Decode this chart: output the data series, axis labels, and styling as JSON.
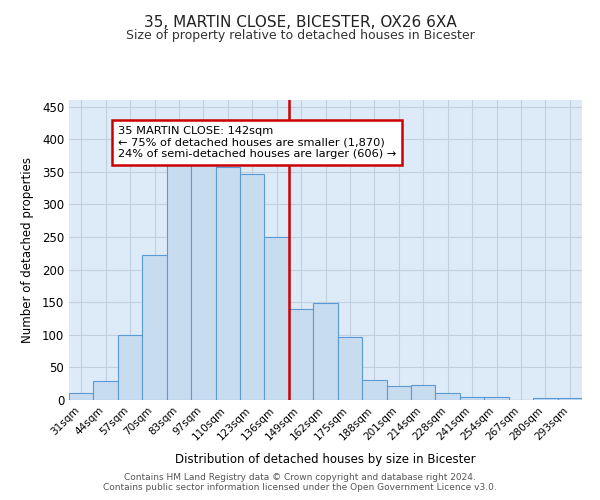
{
  "title1": "35, MARTIN CLOSE, BICESTER, OX26 6XA",
  "title2": "Size of property relative to detached houses in Bicester",
  "xlabel": "Distribution of detached houses by size in Bicester",
  "ylabel": "Number of detached properties",
  "categories": [
    "31sqm",
    "44sqm",
    "57sqm",
    "70sqm",
    "83sqm",
    "97sqm",
    "110sqm",
    "123sqm",
    "136sqm",
    "149sqm",
    "162sqm",
    "175sqm",
    "188sqm",
    "201sqm",
    "214sqm",
    "228sqm",
    "241sqm",
    "254sqm",
    "267sqm",
    "280sqm",
    "293sqm"
  ],
  "values": [
    10,
    29,
    99,
    222,
    361,
    365,
    357,
    346,
    250,
    140,
    149,
    97,
    30,
    22,
    23,
    11,
    4,
    5,
    0,
    3,
    3
  ],
  "bar_color_face": "#c8dcf0",
  "bar_color_edge": "#5b9bd5",
  "annotation_title": "35 MARTIN CLOSE: 142sqm",
  "annotation_line1": "← 75% of detached houses are smaller (1,870)",
  "annotation_line2": "24% of semi-detached houses are larger (606) →",
  "annotation_box_color": "#ffffff",
  "annotation_box_edge": "#cc0000",
  "vline_color": "#cc0000",
  "ylim": [
    0,
    460
  ],
  "yticks": [
    0,
    50,
    100,
    150,
    200,
    250,
    300,
    350,
    400,
    450
  ],
  "footer1": "Contains HM Land Registry data © Crown copyright and database right 2024.",
  "footer2": "Contains public sector information licensed under the Open Government Licence v3.0.",
  "bg_color": "#ddeaf8",
  "plot_bg": "#ffffff",
  "grid_color": "#c0d0e0"
}
